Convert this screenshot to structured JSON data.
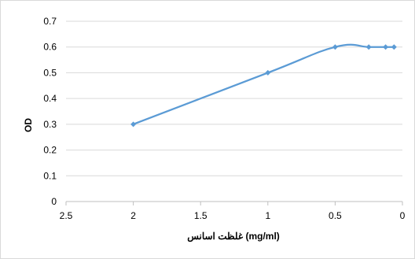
{
  "chart_data": {
    "type": "line",
    "title": "",
    "xlabel": "غلظت اسانس (mg/ml)",
    "ylabel": "OD",
    "x_reversed": true,
    "xlim": [
      0,
      2.5
    ],
    "ylim": [
      0,
      0.7
    ],
    "x_ticks": [
      "0",
      "0.5",
      "1",
      "1.5",
      "2",
      "2.5"
    ],
    "y_ticks": [
      "0",
      "0.1",
      "0.2",
      "0.3",
      "0.4",
      "0.5",
      "0.6",
      "0.7"
    ],
    "grid": "horizontal",
    "legend": "none",
    "series": [
      {
        "color": "#5b9bd5",
        "points": [
          {
            "x": 2,
            "y": 0.3
          },
          {
            "x": 1,
            "y": 0.5
          },
          {
            "x": 0.5,
            "y": 0.6
          },
          {
            "x": 0.25,
            "y": 0.6
          },
          {
            "x": 0.125,
            "y": 0.6
          },
          {
            "x": 0.0625,
            "y": 0.6
          }
        ]
      }
    ]
  }
}
